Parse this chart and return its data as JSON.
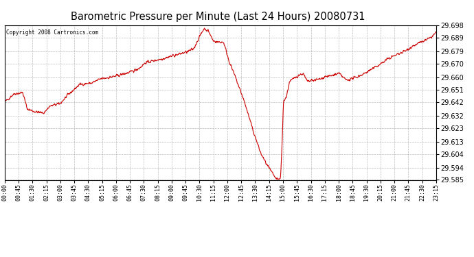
{
  "title": "Barometric Pressure per Minute (Last 24 Hours) 20080731",
  "copyright_text": "Copyright 2008 Cartronics.com",
  "line_color": "#cc0000",
  "background_color": "#ffffff",
  "plot_bg_color": "#ffffff",
  "grid_color": "#aaaaaa",
  "ylim": [
    29.585,
    29.698
  ],
  "yticks": [
    29.585,
    29.594,
    29.604,
    29.613,
    29.623,
    29.632,
    29.642,
    29.651,
    29.66,
    29.67,
    29.679,
    29.689,
    29.698
  ],
  "xtick_labels": [
    "00:00",
    "00:45",
    "01:30",
    "02:15",
    "03:00",
    "03:45",
    "04:30",
    "05:15",
    "06:00",
    "06:45",
    "07:30",
    "08:15",
    "09:00",
    "09:45",
    "10:30",
    "11:15",
    "12:00",
    "12:45",
    "13:30",
    "14:15",
    "15:00",
    "15:45",
    "16:30",
    "17:15",
    "18:00",
    "18:45",
    "19:30",
    "20:15",
    "21:00",
    "21:45",
    "22:30",
    "23:15"
  ],
  "num_points": 1440,
  "waypoints": [
    [
      0,
      29.642
    ],
    [
      30,
      29.648
    ],
    [
      60,
      29.649
    ],
    [
      75,
      29.637
    ],
    [
      100,
      29.635
    ],
    [
      130,
      29.634
    ],
    [
      150,
      29.639
    ],
    [
      185,
      29.641
    ],
    [
      210,
      29.647
    ],
    [
      250,
      29.655
    ],
    [
      290,
      29.656
    ],
    [
      320,
      29.659
    ],
    [
      370,
      29.661
    ],
    [
      420,
      29.664
    ],
    [
      450,
      29.667
    ],
    [
      470,
      29.671
    ],
    [
      490,
      29.672
    ],
    [
      510,
      29.673
    ],
    [
      530,
      29.674
    ],
    [
      560,
      29.676
    ],
    [
      580,
      29.677
    ],
    [
      610,
      29.679
    ],
    [
      630,
      29.681
    ],
    [
      650,
      29.69
    ],
    [
      665,
      29.696
    ],
    [
      680,
      29.694
    ],
    [
      695,
      29.687
    ],
    [
      710,
      29.686
    ],
    [
      730,
      29.686
    ],
    [
      750,
      29.671
    ],
    [
      770,
      29.66
    ],
    [
      800,
      29.642
    ],
    [
      830,
      29.62
    ],
    [
      855,
      29.604
    ],
    [
      875,
      29.596
    ],
    [
      895,
      29.589
    ],
    [
      905,
      29.586
    ],
    [
      912,
      29.585
    ],
    [
      920,
      29.586
    ],
    [
      925,
      29.61
    ],
    [
      930,
      29.643
    ],
    [
      940,
      29.646
    ],
    [
      950,
      29.657
    ],
    [
      975,
      29.661
    ],
    [
      995,
      29.663
    ],
    [
      1010,
      29.657
    ],
    [
      1030,
      29.658
    ],
    [
      1055,
      29.659
    ],
    [
      1070,
      29.661
    ],
    [
      1085,
      29.661
    ],
    [
      1100,
      29.662
    ],
    [
      1115,
      29.663
    ],
    [
      1140,
      29.658
    ],
    [
      1155,
      29.659
    ],
    [
      1170,
      29.66
    ],
    [
      1190,
      29.662
    ],
    [
      1200,
      29.663
    ],
    [
      1215,
      29.665
    ],
    [
      1240,
      29.668
    ],
    [
      1260,
      29.671
    ],
    [
      1280,
      29.674
    ],
    [
      1300,
      29.676
    ],
    [
      1320,
      29.678
    ],
    [
      1340,
      29.68
    ],
    [
      1360,
      29.683
    ],
    [
      1380,
      29.685
    ],
    [
      1400,
      29.687
    ],
    [
      1420,
      29.689
    ],
    [
      1439,
      29.693
    ]
  ]
}
